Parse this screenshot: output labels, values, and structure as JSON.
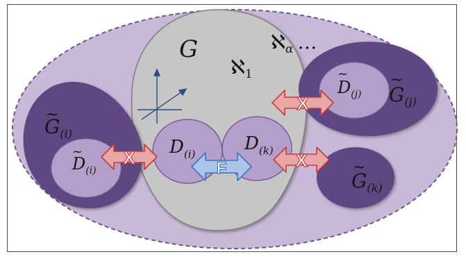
{
  "labels": {
    "g": "G",
    "aleph_1": "ℵ",
    "aleph_1_sub": "1",
    "aleph_alpha": "ℵ",
    "aleph_alpha_sub": "α",
    "ellipsis": "…",
    "g_i_base": "G",
    "g_i_sub": "(i)",
    "d_tilde_i_base": "D",
    "d_tilde_i_sub": "(i)",
    "d_i_base": "D",
    "d_i_sub": "(i)",
    "d_k_base": "D",
    "d_k_sub": "(k)",
    "d_tilde_j_base": "D",
    "d_tilde_j_sub": "(j)",
    "g_j_base": "G",
    "g_j_sub": "(j)",
    "g_k_base": "G",
    "g_k_sub": "(k)",
    "f_arrow": "F",
    "x_mark": "X"
  },
  "colors": {
    "outer_fill": "#c9b9d8",
    "outer_stroke": "#6d5589",
    "g_fill": "#c6c6c6",
    "g_stroke": "#7e7e7e",
    "d_fill": "#b49fcb",
    "d_stroke": "#7a5b98",
    "dark_blob": "#5e4781",
    "red_arrow": "#e8a6a6",
    "red_arrow_stroke": "#c43c3c",
    "blue_arrow": "#a9c6ea",
    "blue_arrow_stroke": "#3d73c0"
  }
}
